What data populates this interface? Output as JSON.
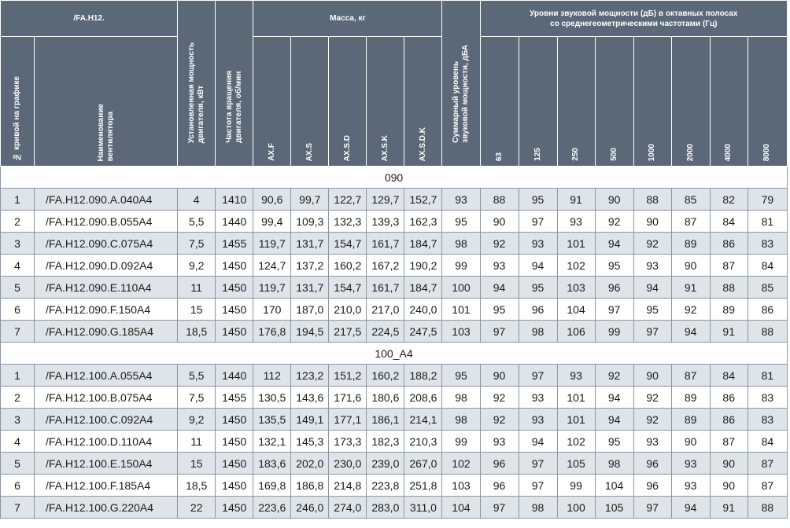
{
  "header": {
    "series_title": "/FA.H12.",
    "mass_title": "Масса, кг",
    "sound_title": "Уровни звуковой мощности (дБ) в октавных полосах\nсо среднегеометрическими частотами (Гц)",
    "col_curve": "№ кривой на графике",
    "col_name": "Наименование\nвентилятора",
    "col_power": "Установленная мощность\nдвигателя, кВт",
    "col_speed": "Частота вращения\nдвигателя, об/мин",
    "mass_cols": [
      "AX.F",
      "AX.S",
      "AX.S.D",
      "AX.S.K",
      "AX.S.D.K"
    ],
    "col_total": "Суммарный уровень\nзвуковой мощности, дБА",
    "freq_cols": [
      "63",
      "125",
      "250",
      "500",
      "1000",
      "2000",
      "4000",
      "8000"
    ]
  },
  "groups": [
    {
      "label": "090",
      "rows": [
        [
          "1",
          "/FA.H12.090.A.040A4",
          "4",
          "1410",
          "90,6",
          "99,7",
          "122,7",
          "129,7",
          "152,7",
          "93",
          "88",
          "95",
          "91",
          "90",
          "88",
          "85",
          "82",
          "79"
        ],
        [
          "2",
          "/FA.H12.090.B.055A4",
          "5,5",
          "1440",
          "99,4",
          "109,3",
          "132,3",
          "139,3",
          "162,3",
          "95",
          "90",
          "97",
          "93",
          "92",
          "90",
          "87",
          "84",
          "81"
        ],
        [
          "3",
          "/FA.H12.090.C.075A4",
          "7,5",
          "1455",
          "119,7",
          "131,7",
          "154,7",
          "161,7",
          "184,7",
          "98",
          "92",
          "93",
          "101",
          "94",
          "92",
          "89",
          "86",
          "83"
        ],
        [
          "4",
          "/FA.H12.090.D.092A4",
          "9,2",
          "1450",
          "124,7",
          "137,2",
          "160,2",
          "167,2",
          "190,2",
          "99",
          "93",
          "94",
          "102",
          "95",
          "93",
          "90",
          "87",
          "84"
        ],
        [
          "5",
          "/FA.H12.090.E.110A4",
          "11",
          "1450",
          "119,7",
          "131,7",
          "154,7",
          "161,7",
          "184,7",
          "100",
          "94",
          "95",
          "103",
          "96",
          "94",
          "91",
          "88",
          "85"
        ],
        [
          "6",
          "/FA.H12.090.F.150A4",
          "15",
          "1450",
          "170",
          "187,0",
          "210,0",
          "217,0",
          "240,0",
          "101",
          "95",
          "96",
          "104",
          "97",
          "95",
          "92",
          "89",
          "86"
        ],
        [
          "7",
          "/FA.H12.090.G.185A4",
          "18,5",
          "1450",
          "176,8",
          "194,5",
          "217,5",
          "224,5",
          "247,5",
          "103",
          "97",
          "98",
          "106",
          "99",
          "97",
          "94",
          "91",
          "88"
        ]
      ]
    },
    {
      "label": "100_A4",
      "rows": [
        [
          "1",
          "/FA.H12.100.A.055A4",
          "5,5",
          "1440",
          "112",
          "123,2",
          "151,2",
          "160,2",
          "188,2",
          "95",
          "90",
          "97",
          "93",
          "92",
          "90",
          "87",
          "84",
          "81"
        ],
        [
          "2",
          "/FA.H12.100.B.075A4",
          "7,5",
          "1455",
          "130,5",
          "143,6",
          "171,6",
          "180,6",
          "208,6",
          "98",
          "92",
          "93",
          "101",
          "94",
          "92",
          "89",
          "86",
          "83"
        ],
        [
          "3",
          "/FA.H12.100.C.092A4",
          "9,2",
          "1450",
          "135,5",
          "149,1",
          "177,1",
          "186,1",
          "214,1",
          "98",
          "92",
          "93",
          "101",
          "94",
          "92",
          "89",
          "86",
          "83"
        ],
        [
          "4",
          "/FA.H12.100.D.110A4",
          "11",
          "1450",
          "132,1",
          "145,3",
          "173,3",
          "182,3",
          "210,3",
          "99",
          "93",
          "94",
          "102",
          "95",
          "93",
          "90",
          "87",
          "84"
        ],
        [
          "5",
          "/FA.H12.100.E.150A4",
          "15",
          "1450",
          "183,6",
          "202,0",
          "230,0",
          "239,0",
          "267,0",
          "102",
          "96",
          "97",
          "105",
          "98",
          "96",
          "93",
          "90",
          "87"
        ],
        [
          "6",
          "/FA.H12.100.F.185A4",
          "18,5",
          "1450",
          "169,8",
          "186,8",
          "214,8",
          "223,8",
          "251,8",
          "103",
          "96",
          "97",
          "99",
          "104",
          "96",
          "93",
          "90",
          "87"
        ],
        [
          "7",
          "/FA.H12.100.G.220A4",
          "22",
          "1450",
          "223,6",
          "246,0",
          "274,0",
          "283,0",
          "311,0",
          "104",
          "97",
          "98",
          "100",
          "105",
          "97",
          "94",
          "91",
          "88"
        ]
      ]
    }
  ]
}
